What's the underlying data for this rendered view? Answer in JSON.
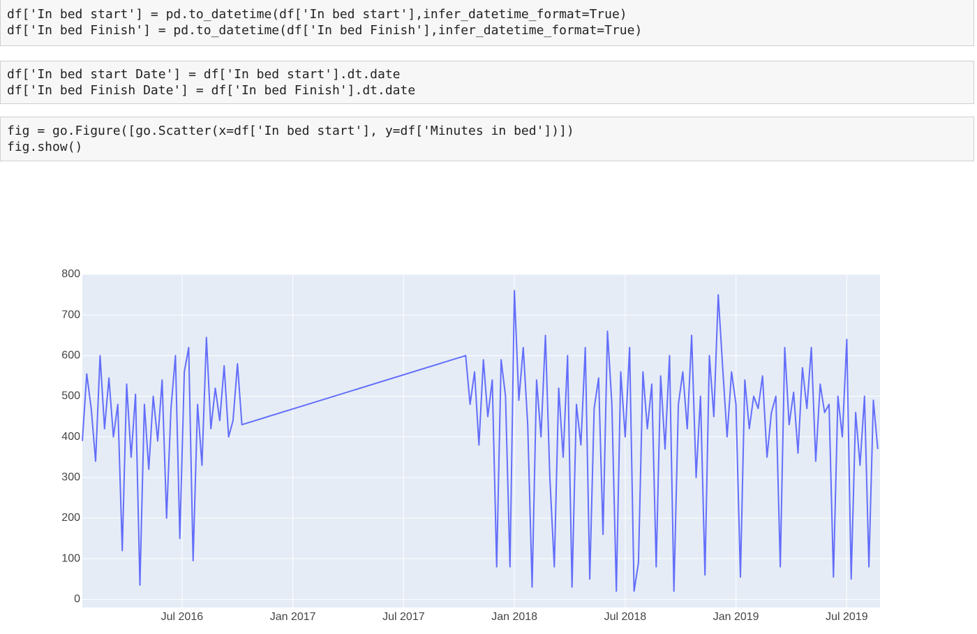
{
  "cells": [
    {
      "lines": [
        "df['In bed start'] = pd.to_datetime(df['In bed start'],infer_datetime_format=True)",
        "df['In bed Finish'] = pd.to_datetime(df['In bed Finish'],infer_datetime_format=True)"
      ]
    },
    {
      "lines": [
        "df['In bed start Date'] = df['In bed start'].dt.date",
        "df['In bed Finish Date'] = df['In bed Finish'].dt.date"
      ]
    },
    {
      "lines": [
        "fig = go.Figure([go.Scatter(x=df['In bed start'], y=df['Minutes in bed'])])",
        "fig.show()"
      ]
    }
  ],
  "chart_data": {
    "type": "line",
    "x": [
      2016.05,
      2016.07,
      2016.09,
      2016.11,
      2016.13,
      2016.15,
      2016.17,
      2016.19,
      2016.21,
      2016.23,
      2016.25,
      2016.27,
      2016.29,
      2016.31,
      2016.33,
      2016.35,
      2016.37,
      2016.39,
      2016.41,
      2016.43,
      2016.45,
      2016.47,
      2016.49,
      2016.51,
      2016.53,
      2016.55,
      2016.57,
      2016.59,
      2016.61,
      2016.63,
      2016.65,
      2016.67,
      2016.69,
      2016.71,
      2016.73,
      2016.75,
      2016.77,
      2017.78,
      2017.8,
      2017.82,
      2017.84,
      2017.86,
      2017.88,
      2017.9,
      2017.92,
      2017.94,
      2017.96,
      2017.98,
      2018.0,
      2018.02,
      2018.04,
      2018.06,
      2018.08,
      2018.1,
      2018.12,
      2018.14,
      2018.16,
      2018.18,
      2018.2,
      2018.22,
      2018.24,
      2018.26,
      2018.28,
      2018.3,
      2018.32,
      2018.34,
      2018.36,
      2018.38,
      2018.4,
      2018.42,
      2018.44,
      2018.46,
      2018.48,
      2018.5,
      2018.52,
      2018.54,
      2018.56,
      2018.58,
      2018.6,
      2018.62,
      2018.64,
      2018.66,
      2018.68,
      2018.7,
      2018.72,
      2018.74,
      2018.76,
      2018.78,
      2018.8,
      2018.82,
      2018.84,
      2018.86,
      2018.88,
      2018.9,
      2018.92,
      2018.94,
      2018.96,
      2018.98,
      2019.0,
      2019.02,
      2019.04,
      2019.06,
      2019.08,
      2019.1,
      2019.12,
      2019.14,
      2019.16,
      2019.18,
      2019.2,
      2019.22,
      2019.24,
      2019.26,
      2019.28,
      2019.3,
      2019.32,
      2019.34,
      2019.36,
      2019.38,
      2019.4,
      2019.42,
      2019.44,
      2019.46,
      2019.48,
      2019.5,
      2019.52,
      2019.54,
      2019.56,
      2019.58,
      2019.6,
      2019.62,
      2019.64
    ],
    "series": [
      {
        "color": "#636efa",
        "values": [
          390,
          555,
          470,
          340,
          600,
          420,
          545,
          400,
          480,
          120,
          530,
          350,
          505,
          35,
          480,
          320,
          500,
          390,
          540,
          200,
          470,
          600,
          150,
          560,
          620,
          95,
          480,
          330,
          645,
          420,
          520,
          440,
          575,
          400,
          440,
          580,
          430,
          600,
          480,
          560,
          380,
          590,
          450,
          540,
          80,
          590,
          500,
          80,
          760,
          490,
          620,
          430,
          30,
          540,
          400,
          650,
          300,
          80,
          520,
          350,
          600,
          30,
          480,
          380,
          620,
          50,
          470,
          545,
          160,
          660,
          480,
          20,
          560,
          400,
          620,
          20,
          90,
          560,
          420,
          530,
          80,
          550,
          370,
          600,
          20,
          480,
          560,
          420,
          650,
          300,
          500,
          60,
          600,
          450,
          750,
          570,
          400,
          560,
          480,
          55,
          540,
          420,
          500,
          470,
          550,
          350,
          460,
          500,
          80,
          620,
          430,
          510,
          360,
          570,
          470,
          620,
          340,
          530,
          460,
          480,
          55,
          500,
          400,
          640,
          50,
          460,
          330,
          500,
          80,
          490,
          370
        ]
      }
    ],
    "xlim": [
      2016.05,
      2019.65
    ],
    "ylim": [
      -20,
      800
    ],
    "xticks": [
      {
        "value": 2016.5,
        "label": "Jul 2016"
      },
      {
        "value": 2017,
        "label": "Jan 2017"
      },
      {
        "value": 2017.5,
        "label": "Jul 2017"
      },
      {
        "value": 2018,
        "label": "Jan 2018"
      },
      {
        "value": 2018.5,
        "label": "Jul 2018"
      },
      {
        "value": 2019,
        "label": "Jan 2019"
      },
      {
        "value": 2019.5,
        "label": "Jul 2019"
      }
    ],
    "yticks": [
      0,
      100,
      200,
      300,
      400,
      500,
      600,
      700,
      800
    ],
    "grid": true,
    "plot_bgcolor": "#e5ecf6"
  }
}
